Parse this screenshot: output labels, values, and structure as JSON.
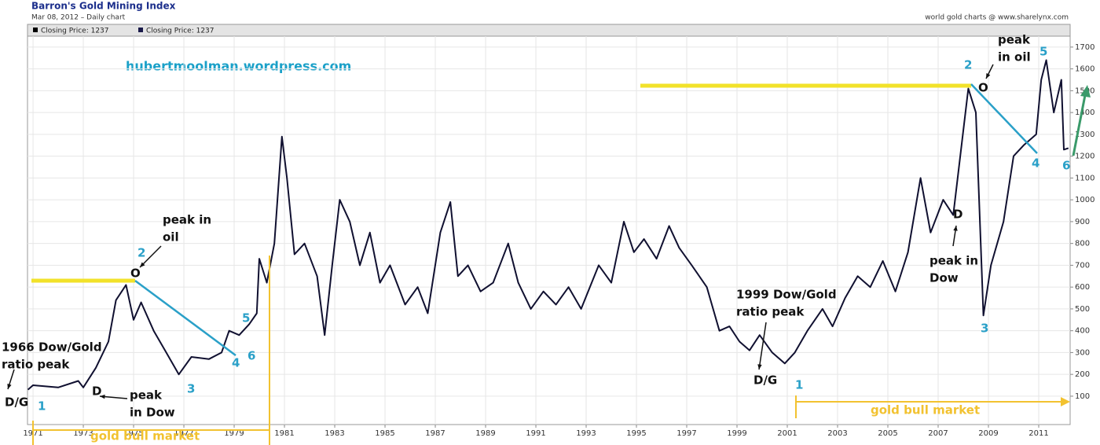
{
  "chart_data": {
    "type": "line",
    "title": "Barron's Gold Mining Index",
    "subtitle": "Mar 08, 2012 – Daily chart",
    "source": "world gold charts @ www.sharelynx.com",
    "watermark": "hubertmoolman.wordpress.com",
    "legend": [
      {
        "label": "Closing Price: 1237",
        "color": "#000000"
      },
      {
        "label": "Closing Price: 1237",
        "color": "#1a1a4a"
      }
    ],
    "grid": true,
    "xlim": [
      1970.78,
      2012.25
    ],
    "xticks": [
      1971,
      1973,
      1975,
      1977,
      1979,
      1981,
      1983,
      1985,
      1987,
      1989,
      1991,
      1993,
      1995,
      1997,
      1999,
      2001,
      2003,
      2005,
      2007,
      2009,
      2011
    ],
    "ylim": [
      -30,
      1750
    ],
    "yticks": [
      100,
      200,
      300,
      400,
      500,
      600,
      700,
      800,
      900,
      1000,
      1100,
      1200,
      1300,
      1400,
      1500,
      1600,
      1700
    ],
    "x": [
      1970.8,
      1971,
      1972,
      1972.8,
      1973,
      1973.5,
      1974,
      1974.3,
      1974.7,
      1975,
      1975.3,
      1975.8,
      1976.3,
      1976.8,
      1977.3,
      1978,
      1978.5,
      1978.8,
      1979.2,
      1979.6,
      1979.9,
      1980.0,
      1980.3,
      1980.6,
      1980.9,
      1981.1,
      1981.4,
      1981.8,
      1982.3,
      1982.6,
      1982.9,
      1983.2,
      1983.6,
      1984,
      1984.4,
      1984.8,
      1985.2,
      1985.8,
      1986.3,
      1986.7,
      1987.2,
      1987.6,
      1987.9,
      1988.3,
      1988.8,
      1989.3,
      1989.9,
      1990.3,
      1990.8,
      1991.3,
      1991.8,
      1992.3,
      1992.8,
      1993.5,
      1994,
      1994.5,
      1994.9,
      1995.3,
      1995.8,
      1996.3,
      1996.7,
      1997.2,
      1997.8,
      1998.3,
      1998.7,
      1999.1,
      1999.5,
      1999.9,
      2000.4,
      2000.9,
      2001.3,
      2001.8,
      2002.4,
      2002.8,
      2003.3,
      2003.8,
      2004.3,
      2004.8,
      2005.3,
      2005.8,
      2006.3,
      2006.7,
      2007.2,
      2007.6,
      2008.2,
      2008.5,
      2008.8,
      2009.1,
      2009.6,
      2010.0,
      2010.4,
      2010.9,
      2011.1,
      2011.3,
      2011.6,
      2011.9,
      2012.0,
      2012.18
    ],
    "series": [
      {
        "color": "#101030",
        "values": [
          130,
          150,
          140,
          170,
          140,
          230,
          350,
          540,
          610,
          450,
          530,
          400,
          300,
          200,
          280,
          270,
          300,
          400,
          380,
          430,
          480,
          730,
          620,
          800,
          1290,
          1100,
          750,
          800,
          650,
          380,
          700,
          1000,
          900,
          700,
          850,
          620,
          700,
          520,
          600,
          480,
          850,
          990,
          650,
          700,
          580,
          620,
          800,
          620,
          500,
          580,
          520,
          600,
          500,
          700,
          620,
          900,
          760,
          820,
          730,
          880,
          780,
          700,
          600,
          400,
          420,
          350,
          310,
          380,
          300,
          250,
          300,
          400,
          500,
          420,
          550,
          650,
          600,
          720,
          580,
          760,
          1100,
          850,
          1000,
          930,
          1510,
          1400,
          470,
          700,
          900,
          1200,
          1250,
          1300,
          1550,
          1640,
          1400,
          1550,
          1230,
          1237
        ]
      }
    ],
    "annotations": [
      {
        "text": [
          "1"
        ]
      },
      {
        "text": [
          "2"
        ]
      },
      {
        "text": [
          "3"
        ]
      },
      {
        "text": [
          "4"
        ]
      },
      {
        "text": [
          "5"
        ]
      },
      {
        "text": [
          "6"
        ]
      },
      {
        "text": [
          "O"
        ]
      },
      {
        "text": [
          "D"
        ]
      },
      {
        "text": [
          "D/G"
        ]
      },
      {
        "text": [
          "peak in",
          "oil"
        ]
      },
      {
        "text": [
          "peak",
          "in Dow"
        ]
      },
      {
        "text": [
          "1966 Dow/Gold",
          "ratio peak"
        ]
      },
      {
        "text": [
          "gold bull market"
        ]
      },
      {
        "text": [
          "1"
        ]
      },
      {
        "text": [
          "2"
        ]
      },
      {
        "text": [
          "3"
        ]
      },
      {
        "text": [
          "4"
        ]
      },
      {
        "text": [
          "5"
        ]
      },
      {
        "text": [
          "6"
        ]
      },
      {
        "text": [
          "O"
        ]
      },
      {
        "text": [
          "D"
        ]
      },
      {
        "text": [
          "D/G"
        ]
      },
      {
        "text": [
          "peak",
          "in oil"
        ]
      },
      {
        "text": [
          "peak in",
          "Dow"
        ]
      },
      {
        "text": [
          "1999 Dow/Gold",
          "ratio peak"
        ]
      },
      {
        "text": [
          "gold bull market"
        ]
      }
    ]
  }
}
